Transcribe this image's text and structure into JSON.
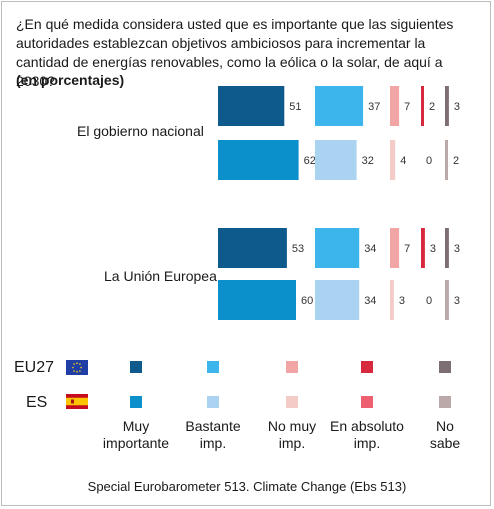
{
  "question": "¿En qué medida considera usted que es importante que las siguientes autoridades establezcan objetivos ambiciosos para incrementar la cantidad de energías renovables, como la eólica o la solar, de aquí a 2030?",
  "unit": "(en porcentajes)",
  "source": "Special Eurobarometer 513. Climate Change (Ebs 513)",
  "legend": {
    "rows": [
      "EU27",
      "ES"
    ],
    "categories": [
      "Muy importante",
      "Bastante imp.",
      "No muy imp.",
      "En absoluto imp.",
      "No sabe"
    ],
    "category_lines": [
      [
        "Muy",
        "importante"
      ],
      [
        "Bastante",
        "imp."
      ],
      [
        "No muy",
        "imp."
      ],
      [
        "En absoluto",
        "imp."
      ],
      [
        "No",
        "sabe"
      ]
    ]
  },
  "colors": {
    "EU27": [
      "#0f5a8c",
      "#3bb5ec",
      "#f2a5a5",
      "#d7293d",
      "#7d6e74"
    ],
    "ES": [
      "#0c90cc",
      "#a9d3f0",
      "#f5cbc7",
      "#ee5f6f",
      "#bba8a8"
    ]
  },
  "chart_data": {
    "type": "bar",
    "orientation": "horizontal",
    "stacking": "grouped-by-category",
    "groups": [
      "El gobierno nacional",
      "La Unión Europea"
    ],
    "categories": [
      "Muy importante",
      "Bastante imp.",
      "No muy imp.",
      "En absoluto imp.",
      "No sabe"
    ],
    "series": [
      {
        "group": "El gobierno nacional",
        "name": "EU27",
        "values": [
          51,
          37,
          7,
          2,
          3
        ]
      },
      {
        "group": "El gobierno nacional",
        "name": "ES",
        "values": [
          62,
          32,
          4,
          0,
          2
        ]
      },
      {
        "group": "La Unión Europea",
        "name": "EU27",
        "values": [
          53,
          34,
          7,
          3,
          3
        ]
      },
      {
        "group": "La Unión Europea",
        "name": "ES",
        "values": [
          60,
          34,
          3,
          0,
          3
        ]
      }
    ]
  }
}
